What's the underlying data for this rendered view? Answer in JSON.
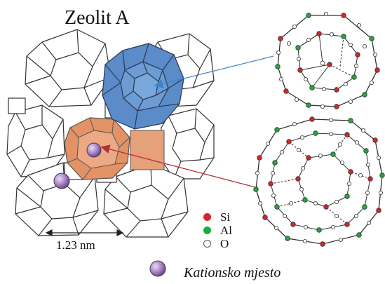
{
  "figure": {
    "title": "Zeolit A",
    "scale_label": "1.23 nm",
    "cation_label": "Kationsko mjesto",
    "legend": [
      {
        "label": "Si",
        "color": "#d8232a",
        "hollow": false
      },
      {
        "label": "Al",
        "color": "#1faa3c",
        "hollow": false
      },
      {
        "label": "O",
        "color": "#ffffff",
        "hollow": true
      }
    ],
    "colors": {
      "sodalite_cage": "#5b8cc9",
      "inner_cage": "#e39265",
      "cation": "#b08cc9",
      "blue_arrow": "#3c86c7",
      "red_arrow": "#b2303a"
    }
  }
}
